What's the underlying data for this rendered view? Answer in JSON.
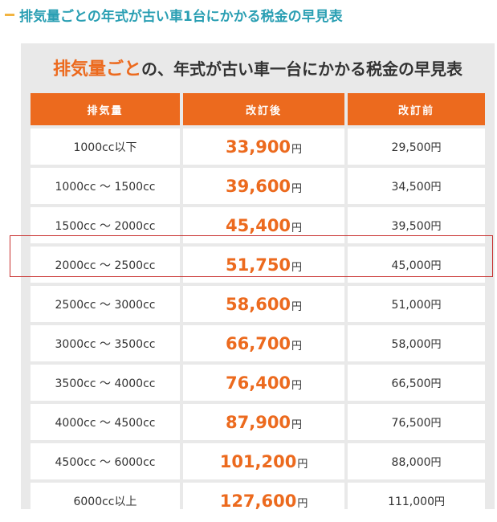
{
  "heading": "排気量ごとの年式が古い車1台にかかる税金の早見表",
  "table_title": {
    "accent": "排気量ごと",
    "rest": "の、年式が古い車一台にかかる税金の早見表"
  },
  "columns": [
    "排気量",
    "改訂後",
    "改訂前"
  ],
  "yen": "円",
  "rows": [
    {
      "displacement": "1000cc以下",
      "after": "33,900",
      "before": "29,500"
    },
    {
      "displacement": "1000cc 〜 1500cc",
      "after": "39,600",
      "before": "34,500"
    },
    {
      "displacement": "1500cc 〜 2000cc",
      "after": "45,400",
      "before": "39,500"
    },
    {
      "displacement": "2000cc 〜 2500cc",
      "after": "51,750",
      "before": "45,000"
    },
    {
      "displacement": "2500cc 〜 3000cc",
      "after": "58,600",
      "before": "51,000"
    },
    {
      "displacement": "3000cc 〜 3500cc",
      "after": "66,700",
      "before": "58,000"
    },
    {
      "displacement": "3500cc 〜 4000cc",
      "after": "76,400",
      "before": "66,500"
    },
    {
      "displacement": "4000cc 〜 4500cc",
      "after": "87,900",
      "before": "76,500"
    },
    {
      "displacement": "4500cc 〜 6000cc",
      "after": "101,200",
      "before": "88,000"
    },
    {
      "displacement": "6000cc以上",
      "after": "127,600",
      "before": "111,000"
    }
  ],
  "colors": {
    "accent": "#ec6a1e",
    "heading": "#2a9fb3",
    "highlight": "#c8302e"
  }
}
